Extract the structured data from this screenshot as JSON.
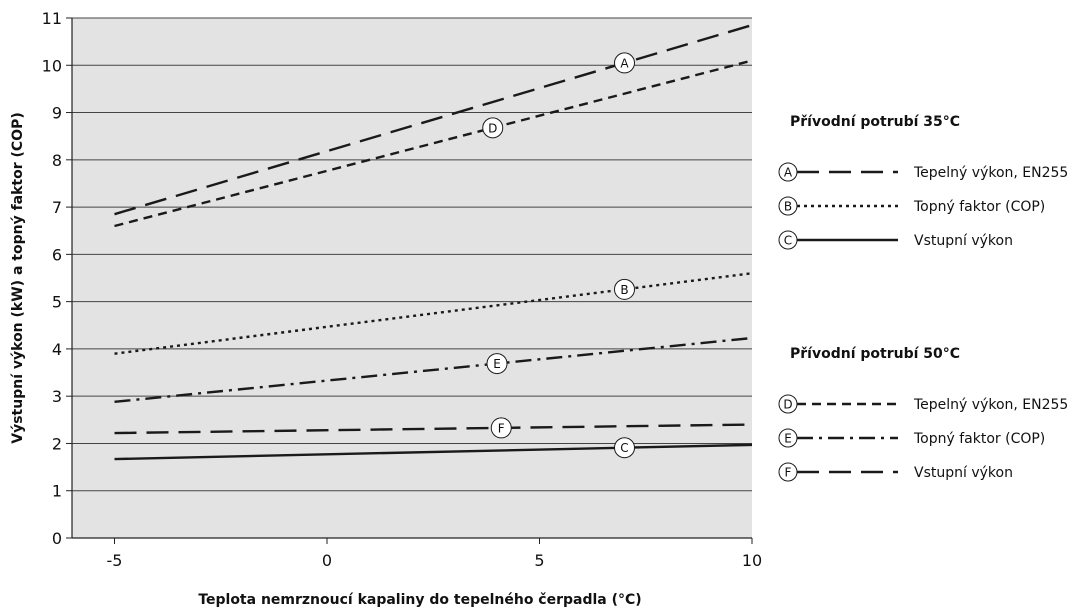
{
  "chart_data": {
    "type": "line",
    "xlabel": "Teplota nemrznoucí kapaliny do tepelného čerpadla (°C)",
    "ylabel": "Výstupní výkon (kW) a topný faktor (COP)",
    "xlim": [
      -6,
      10
    ],
    "ylim": [
      0,
      11
    ],
    "x_ticks": [
      -5,
      0,
      5,
      10
    ],
    "y_ticks": [
      0,
      1,
      2,
      3,
      4,
      5,
      6,
      7,
      8,
      9,
      10,
      11
    ],
    "grid": "horizontal",
    "background": "#e3e3e3",
    "series": [
      {
        "marker": "A",
        "group": "35",
        "style": "long-dash",
        "x": [
          -5,
          10
        ],
        "y": [
          6.85,
          10.85
        ],
        "label_at": 7
      },
      {
        "marker": "B",
        "group": "35",
        "style": "dotted",
        "x": [
          -5,
          10
        ],
        "y": [
          3.9,
          5.6
        ],
        "label_at": 7
      },
      {
        "marker": "C",
        "group": "35",
        "style": "solid",
        "x": [
          -5,
          10
        ],
        "y": [
          1.67,
          1.97
        ],
        "label_at": 7
      },
      {
        "marker": "D",
        "group": "50",
        "style": "short-dash",
        "x": [
          -5,
          10
        ],
        "y": [
          6.6,
          10.1
        ],
        "label_at": 3.9
      },
      {
        "marker": "E",
        "group": "50",
        "style": "dash-dot",
        "x": [
          -5,
          10
        ],
        "y": [
          2.88,
          4.23
        ],
        "label_at": 4
      },
      {
        "marker": "F",
        "group": "50",
        "style": "long-dash",
        "x": [
          -5,
          10
        ],
        "y": [
          2.22,
          2.4
        ],
        "label_at": 4.1
      }
    ]
  },
  "legend": {
    "groups": [
      {
        "heading": "Přívodní potrubí 35°C",
        "items": [
          {
            "marker": "A",
            "style": "long-dash",
            "label": "Tepelný výkon, EN255"
          },
          {
            "marker": "B",
            "style": "dotted",
            "label": "Topný faktor (COP)"
          },
          {
            "marker": "C",
            "style": "solid",
            "label": "Vstupní výkon"
          }
        ]
      },
      {
        "heading": "Přívodní potrubí 50°C",
        "items": [
          {
            "marker": "D",
            "style": "short-dash",
            "label": "Tepelný výkon, EN255"
          },
          {
            "marker": "E",
            "style": "dash-dot",
            "label": "Topný faktor (COP)"
          },
          {
            "marker": "F",
            "style": "long-dash",
            "label": "Vstupní výkon"
          }
        ]
      }
    ]
  }
}
